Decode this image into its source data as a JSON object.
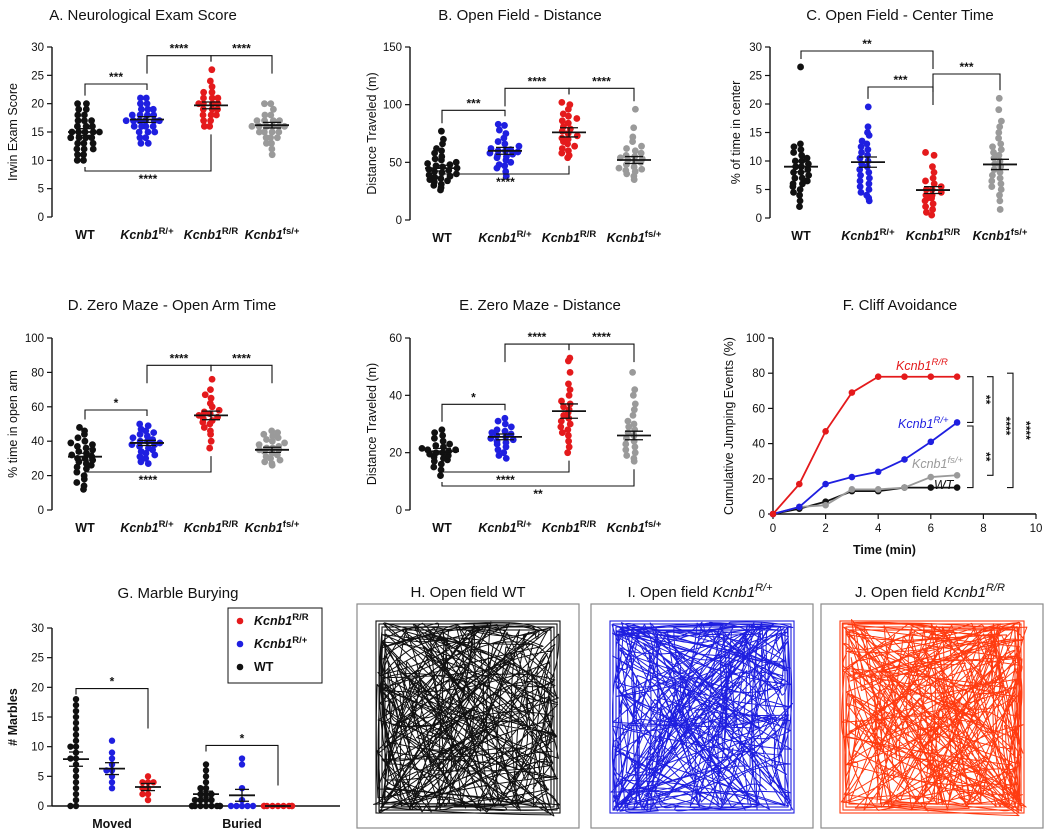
{
  "colors": {
    "wt": "#111111",
    "rr": "#e41a1c",
    "rplus": "#1f1fe0",
    "fs": "#9a9a9a",
    "trace_rr": "#ff3b10"
  },
  "categories": [
    {
      "key": "wt",
      "label": "WT"
    },
    {
      "key": "rplus",
      "label": "Kcnb1",
      "sup": "R/+"
    },
    {
      "key": "rr",
      "label": "Kcnb1",
      "sup": "R/R"
    },
    {
      "key": "fs",
      "label": "Kcnb1",
      "sup": "fs/+"
    }
  ],
  "chart_data": [
    {
      "id": "A",
      "type": "scatter",
      "title": "A. Neurological Exam Score",
      "ylabel": "Irwin Exam Score",
      "ylim": [
        0,
        30
      ],
      "yticks": [
        0,
        5,
        10,
        15,
        20,
        25,
        30
      ],
      "series": [
        {
          "key": "wt",
          "mean": 15.0,
          "sem": 0.6,
          "values": [
            20,
            20,
            19,
            19,
            18,
            18,
            17,
            17,
            17,
            16,
            16,
            16,
            15,
            15,
            15,
            15,
            15,
            14,
            14,
            14,
            14,
            13,
            13,
            13,
            12,
            12,
            12,
            11,
            11,
            10,
            10
          ]
        },
        {
          "key": "rplus",
          "mean": 17.2,
          "sem": 0.5,
          "values": [
            21,
            21,
            20,
            20,
            19,
            19,
            19,
            18,
            18,
            18,
            18,
            17,
            17,
            17,
            17,
            17,
            17,
            16,
            16,
            16,
            16,
            15,
            15,
            15,
            14,
            14,
            13,
            13
          ]
        },
        {
          "key": "rr",
          "mean": 19.7,
          "sem": 0.6,
          "values": [
            26,
            24,
            23,
            22,
            22,
            21,
            21,
            21,
            20,
            20,
            20,
            20,
            19,
            19,
            19,
            18,
            18,
            18,
            17,
            17,
            16,
            16
          ]
        },
        {
          "key": "fs",
          "mean": 16.2,
          "sem": 0.5,
          "values": [
            20,
            20,
            19,
            18,
            18,
            17,
            17,
            17,
            17,
            16,
            16,
            16,
            16,
            16,
            16,
            15,
            15,
            15,
            15,
            14,
            14,
            14,
            13,
            13,
            12,
            11
          ]
        }
      ],
      "comparisons": [
        {
          "a": 0,
          "b": 1,
          "label": "***",
          "side": "top"
        },
        {
          "a": 1,
          "b": 2,
          "label": "****",
          "side": "top"
        },
        {
          "a": 2,
          "b": 3,
          "label": "****",
          "side": "top"
        },
        {
          "a": 0,
          "b": 2,
          "label": "****",
          "side": "bottom"
        }
      ]
    },
    {
      "id": "B",
      "type": "scatter",
      "title": "B. Open Field - Distance",
      "ylabel": "Distance Traveled (m)",
      "ylim": [
        0,
        150
      ],
      "yticks": [
        0,
        50,
        100,
        150
      ],
      "series": [
        {
          "key": "wt",
          "mean": 45,
          "sem": 2.5,
          "values": [
            77,
            70,
            66,
            62,
            60,
            58,
            55,
            53,
            52,
            50,
            49,
            48,
            47,
            46,
            45,
            44,
            43,
            42,
            41,
            40,
            39,
            38,
            37,
            36,
            35,
            34,
            33,
            31,
            30,
            28,
            26
          ]
        },
        {
          "key": "rplus",
          "mean": 60,
          "sem": 3,
          "values": [
            83,
            82,
            78,
            75,
            71,
            68,
            66,
            64,
            62,
            61,
            60,
            60,
            59,
            58,
            57,
            56,
            55,
            54,
            52,
            50,
            48,
            47,
            45,
            42,
            38
          ]
        },
        {
          "key": "rr",
          "mean": 76,
          "sem": 4,
          "values": [
            102,
            100,
            96,
            92,
            90,
            88,
            86,
            84,
            81,
            79,
            77,
            75,
            73,
            71,
            70,
            68,
            66,
            64,
            62,
            60,
            58,
            56,
            54
          ]
        },
        {
          "key": "fs",
          "mean": 52,
          "sem": 3,
          "values": [
            96,
            80,
            72,
            68,
            64,
            62,
            60,
            58,
            56,
            55,
            54,
            53,
            52,
            51,
            50,
            48,
            46,
            45,
            44,
            43,
            42,
            40,
            38,
            35
          ]
        }
      ],
      "comparisons": [
        {
          "a": 0,
          "b": 1,
          "label": "***",
          "side": "top"
        },
        {
          "a": 1,
          "b": 2,
          "label": "****",
          "side": "top"
        },
        {
          "a": 2,
          "b": 3,
          "label": "****",
          "side": "top"
        },
        {
          "a": 0,
          "b": 2,
          "label": "****",
          "side": "bottom"
        }
      ]
    },
    {
      "id": "C",
      "type": "scatter",
      "title": "C. Open  Field - Center Time",
      "ylabel": "% of time in center",
      "ylim": [
        0,
        30
      ],
      "yticks": [
        0,
        5,
        10,
        15,
        20,
        25,
        30
      ],
      "series": [
        {
          "key": "wt",
          "mean": 9.0,
          "sem": 0.9,
          "values": [
            26.5,
            13,
            12.5,
            12,
            11.5,
            11,
            10.5,
            10,
            10,
            9.5,
            9,
            9,
            8.5,
            8,
            8,
            7.5,
            7,
            7,
            6.5,
            6,
            6,
            5.5,
            5,
            4.5,
            4,
            3,
            2
          ]
        },
        {
          "key": "rplus",
          "mean": 9.8,
          "sem": 0.9,
          "values": [
            19.5,
            16,
            15,
            14.5,
            13.5,
            13,
            12.5,
            12,
            11.5,
            11,
            10.5,
            10,
            9.5,
            9,
            8.5,
            8,
            7.5,
            7,
            6.5,
            6,
            5.5,
            5,
            4.5,
            4,
            3.5,
            3
          ]
        },
        {
          "key": "rr",
          "mean": 4.9,
          "sem": 0.6,
          "values": [
            11.5,
            11,
            9,
            8,
            7,
            6.5,
            6,
            5.5,
            5,
            5,
            4.5,
            4,
            4,
            3.5,
            3.5,
            3,
            2.5,
            2,
            1.5,
            1,
            0.5
          ]
        },
        {
          "key": "fs",
          "mean": 9.4,
          "sem": 0.9,
          "values": [
            21,
            19,
            17,
            16,
            15,
            14,
            13,
            12.5,
            12,
            11.5,
            11,
            10.5,
            10,
            9.5,
            9,
            8.5,
            8,
            7.5,
            7,
            6.5,
            6,
            5.5,
            5,
            4,
            3,
            1.5
          ]
        }
      ],
      "comparisons": [
        {
          "a": 0,
          "b": 2,
          "label": "**",
          "side": "top",
          "level": 0
        },
        {
          "a": 1,
          "b": 2,
          "label": "***",
          "side": "top",
          "level": 1
        },
        {
          "a": 2,
          "b": 3,
          "label": "***",
          "side": "top",
          "level": 2
        }
      ]
    },
    {
      "id": "D",
      "type": "scatter",
      "title": "D. Zero Maze - Open Arm Time",
      "ylabel": "% time in open arm",
      "ylim": [
        0,
        100
      ],
      "yticks": [
        0,
        20,
        40,
        60,
        80,
        100
      ],
      "series": [
        {
          "key": "wt",
          "mean": 31,
          "sem": 2,
          "values": [
            48,
            46,
            44,
            42,
            40,
            39,
            38,
            37,
            36,
            35,
            34,
            33,
            32,
            31,
            30,
            30,
            29,
            28,
            27,
            26,
            25,
            24,
            22,
            20,
            18,
            16,
            14,
            12
          ]
        },
        {
          "key": "rplus",
          "mean": 39,
          "sem": 1.5,
          "values": [
            50,
            49,
            47,
            46,
            45,
            44,
            43,
            42,
            41,
            40,
            40,
            39,
            38,
            38,
            37,
            36,
            35,
            34,
            33,
            32,
            31,
            30,
            28,
            27
          ]
        },
        {
          "key": "rr",
          "mean": 55,
          "sem": 2.5,
          "values": [
            76,
            70,
            67,
            65,
            62,
            60,
            58,
            57,
            56,
            55,
            54,
            53,
            52,
            51,
            50,
            48,
            46,
            44,
            40,
            36
          ]
        },
        {
          "key": "fs",
          "mean": 35,
          "sem": 1.5,
          "values": [
            46,
            45,
            44,
            43,
            42,
            41,
            40,
            39,
            38,
            37,
            36,
            36,
            35,
            35,
            34,
            33,
            32,
            31,
            30,
            29,
            28,
            27,
            26
          ]
        }
      ],
      "comparisons": [
        {
          "a": 0,
          "b": 1,
          "label": "*",
          "side": "top"
        },
        {
          "a": 1,
          "b": 2,
          "label": "****",
          "side": "top"
        },
        {
          "a": 2,
          "b": 3,
          "label": "****",
          "side": "top"
        },
        {
          "a": 0,
          "b": 2,
          "label": "****",
          "side": "bottom"
        }
      ]
    },
    {
      "id": "E",
      "type": "scatter",
      "title": "E. Zero Maze - Distance",
      "ylabel": "Distance Traveled (m)",
      "ylim": [
        0,
        60
      ],
      "yticks": [
        0,
        20,
        40,
        60
      ],
      "series": [
        {
          "key": "wt",
          "mean": 20.5,
          "sem": 1,
          "values": [
            28,
            27,
            26,
            25,
            24,
            23,
            22.5,
            22,
            21.5,
            21,
            21,
            20.5,
            20,
            20,
            19.5,
            19,
            18.5,
            18,
            17.5,
            17,
            16,
            15,
            14,
            12
          ]
        },
        {
          "key": "rplus",
          "mean": 25.5,
          "sem": 1,
          "values": [
            32,
            31,
            30,
            29,
            28,
            27.5,
            27,
            26.5,
            26,
            25.5,
            25,
            24.5,
            24,
            23.5,
            23,
            22,
            21,
            20,
            19,
            18
          ]
        },
        {
          "key": "rr",
          "mean": 34.5,
          "sem": 2.5,
          "values": [
            53,
            52,
            48,
            44,
            42,
            40,
            38,
            37,
            36,
            35,
            34,
            33,
            32,
            31,
            30,
            29,
            28,
            27,
            26,
            24,
            22,
            20
          ]
        },
        {
          "key": "fs",
          "mean": 26,
          "sem": 1.5,
          "values": [
            48,
            42,
            40,
            37,
            35,
            33,
            31,
            30,
            29,
            28,
            27,
            26,
            25,
            24,
            23,
            22,
            21,
            20,
            19,
            18,
            17
          ]
        }
      ],
      "comparisons": [
        {
          "a": 0,
          "b": 1,
          "label": "*",
          "side": "top"
        },
        {
          "a": 1,
          "b": 2,
          "label": "****",
          "side": "top"
        },
        {
          "a": 2,
          "b": 3,
          "label": "****",
          "side": "top"
        },
        {
          "a": 0,
          "b": 2,
          "label": "****",
          "side": "bottom",
          "level": 0
        },
        {
          "a": 0,
          "b": 3,
          "label": "**",
          "side": "bottom",
          "level": 1
        }
      ]
    },
    {
      "id": "F",
      "type": "line",
      "title": "F. Cliff Avoidance",
      "ylabel": "Cumulative Jumping Events (%)",
      "xlabel": "Time (min)",
      "xlim": [
        0,
        10
      ],
      "xticks": [
        0,
        2,
        4,
        6,
        8,
        10
      ],
      "ylim": [
        0,
        100
      ],
      "yticks": [
        0,
        20,
        40,
        60,
        80,
        100
      ],
      "x": [
        0,
        1,
        2,
        3,
        4,
        5,
        6,
        7
      ],
      "series": [
        {
          "key": "rr",
          "name": "Kcnb1",
          "sup": "R/R",
          "values": [
            0,
            17,
            47,
            69,
            78,
            78,
            78,
            78
          ]
        },
        {
          "key": "rplus",
          "name": "Kcnb1",
          "sup": "R/+",
          "values": [
            0,
            4,
            17,
            21,
            24,
            31,
            41,
            52
          ]
        },
        {
          "key": "fs",
          "name": "Kcnb1",
          "sup": "fs/+",
          "values": [
            0,
            4,
            5,
            14,
            14,
            15,
            21,
            22
          ]
        },
        {
          "key": "wt",
          "name": "WT",
          "values": [
            0,
            3,
            7,
            13,
            13,
            15,
            15,
            15
          ]
        }
      ],
      "brackets": [
        "**",
        "**",
        "****",
        "****"
      ]
    },
    {
      "id": "G",
      "type": "scatter",
      "title": "G. Marble Burying",
      "ylabel": "# Marbles",
      "ylim": [
        0,
        30
      ],
      "yticks": [
        0,
        5,
        10,
        15,
        20,
        25,
        30
      ],
      "groups": [
        "Moved",
        "Buried"
      ],
      "legend": [
        {
          "key": "rr",
          "label": "Kcnb1",
          "sup": "R/R"
        },
        {
          "key": "rplus",
          "label": "Kcnb1",
          "sup": "R/+"
        },
        {
          "key": "wt",
          "label": "WT"
        }
      ],
      "series": [
        {
          "group": 0,
          "key": "wt",
          "mean": 7.9,
          "sem": 1.2,
          "values": [
            18,
            17,
            16,
            15,
            14,
            13,
            12,
            11,
            10,
            10,
            9,
            8,
            8,
            7,
            6,
            5,
            4,
            3,
            2,
            1,
            0,
            0
          ]
        },
        {
          "group": 0,
          "key": "rplus",
          "mean": 6.3,
          "sem": 1.0,
          "values": [
            11,
            9,
            8,
            7,
            6,
            6,
            5,
            4,
            3
          ]
        },
        {
          "group": 0,
          "key": "rr",
          "mean": 3.2,
          "sem": 0.6,
          "values": [
            5,
            4,
            4,
            4,
            3,
            3,
            2,
            2,
            1
          ]
        },
        {
          "group": 1,
          "key": "wt",
          "mean": 2.0,
          "sem": 0.5,
          "values": [
            7,
            6,
            5,
            4,
            3,
            3,
            2,
            2,
            2,
            1,
            1,
            1,
            1,
            0,
            0,
            0,
            0,
            0,
            0,
            0,
            0,
            0
          ]
        },
        {
          "group": 1,
          "key": "rplus",
          "mean": 1.8,
          "sem": 1.0,
          "values": [
            8,
            7,
            3,
            1,
            0,
            0,
            0,
            0,
            0
          ]
        },
        {
          "group": 1,
          "key": "rr",
          "mean": 0.0,
          "sem": 0.0,
          "values": [
            0,
            0,
            0,
            0,
            0,
            0,
            0,
            0,
            0
          ]
        }
      ],
      "comparisons": [
        {
          "group": 0,
          "label": "*"
        },
        {
          "group": 1,
          "label": "*"
        }
      ]
    }
  ],
  "open_field": [
    {
      "id": "H",
      "title": "H. Open field WT",
      "color_key": "wt"
    },
    {
      "id": "I",
      "title": "I. Open field ",
      "title_italic": "Kcnb1",
      "title_sup": "R/+",
      "color_key": "rplus"
    },
    {
      "id": "J",
      "title": "J. Open field ",
      "title_italic": "Kcnb1",
      "title_sup": "R/R",
      "color_key": "trace_rr"
    }
  ]
}
